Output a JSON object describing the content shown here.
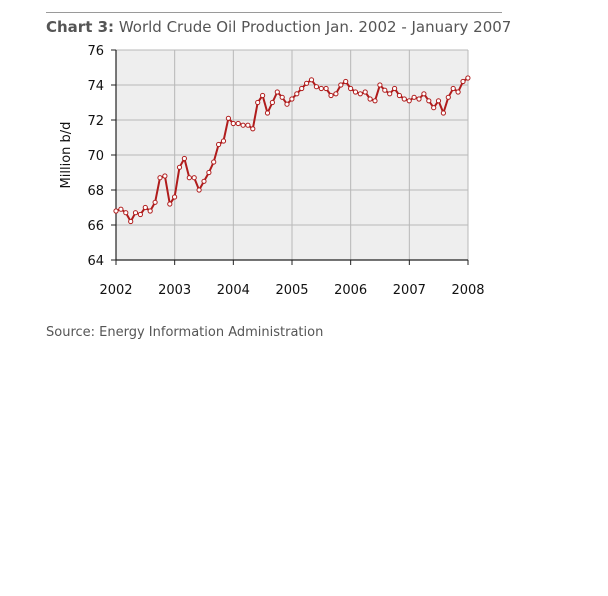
{
  "header": {
    "label": "Chart 3:",
    "text": "World Crude Oil Production Jan. 2002 - January 2007"
  },
  "footer": {
    "source": "Source: Energy Information Administration"
  },
  "colors": {
    "line": "#b01c1c",
    "marker_fill": "#ffffff",
    "grid": "#b8b8b8",
    "plot_bg": "#eeeeee"
  },
  "chart_data": {
    "type": "line",
    "title": "World Crude Oil Production Jan. 2002 - January 2007",
    "xlabel": "",
    "ylabel": "Million b/d",
    "xlim": [
      2002,
      2008
    ],
    "ylim": [
      64,
      76
    ],
    "xticks": [
      2002,
      2003,
      2004,
      2005,
      2006,
      2007,
      2008
    ],
    "yticks": [
      64,
      66,
      68,
      70,
      72,
      74,
      76
    ],
    "grid": true,
    "series": [
      {
        "name": "World crude oil production",
        "start": 2002.0,
        "step": 0.0833,
        "values": [
          66.8,
          66.9,
          66.7,
          66.2,
          66.7,
          66.6,
          67.0,
          66.8,
          67.3,
          68.7,
          68.8,
          67.2,
          67.6,
          69.3,
          69.8,
          68.7,
          68.7,
          68.0,
          68.5,
          69.0,
          69.6,
          70.6,
          70.8,
          72.1,
          71.8,
          71.8,
          71.7,
          71.7,
          71.5,
          73.0,
          73.4,
          72.4,
          73.0,
          73.6,
          73.3,
          72.9,
          73.2,
          73.5,
          73.8,
          74.1,
          74.3,
          73.9,
          73.8,
          73.8,
          73.4,
          73.5,
          74.0,
          74.2,
          73.8,
          73.6,
          73.5,
          73.6,
          73.2,
          73.1,
          74.0,
          73.7,
          73.5,
          73.8,
          73.4,
          73.2,
          73.1,
          73.3,
          73.2,
          73.5,
          73.1,
          72.7,
          73.1,
          72.4,
          73.3,
          73.8,
          73.6,
          74.2,
          74.4
        ]
      }
    ]
  }
}
